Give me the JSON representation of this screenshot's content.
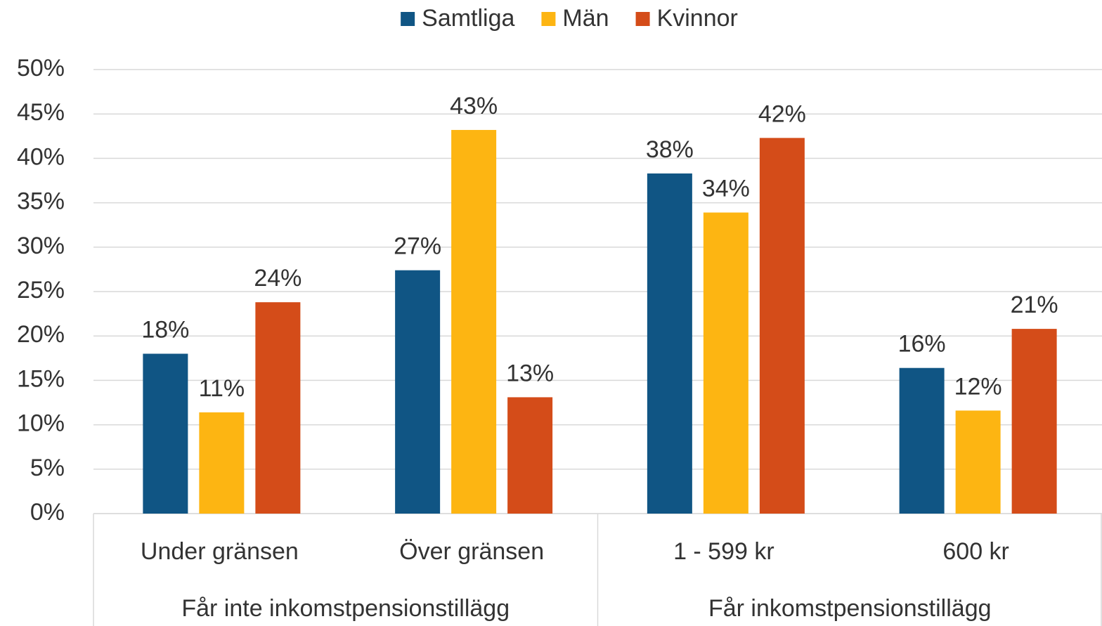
{
  "chart_data": {
    "type": "bar",
    "category_groups": [
      {
        "name": "Får inte inkomstpensionstillägg",
        "categories": [
          "Under gränsen",
          "Över gränsen"
        ]
      },
      {
        "name": "Får inkomstpensionstillägg",
        "categories": [
          "1 - 599 kr",
          "600 kr"
        ]
      }
    ],
    "series": [
      {
        "name": "Samtliga",
        "color": "#105584",
        "values": [
          18.0,
          27.4,
          38.3,
          16.4
        ],
        "value_labels": [
          "18%",
          "27%",
          "38%",
          "16%"
        ]
      },
      {
        "name": "Män",
        "color": "#fdb512",
        "values": [
          11.4,
          43.2,
          33.9,
          11.6
        ],
        "value_labels": [
          "11%",
          "43%",
          "34%",
          "12%"
        ]
      },
      {
        "name": "Kvinnor",
        "color": "#d44c19",
        "values": [
          23.8,
          13.1,
          42.3,
          20.8
        ],
        "value_labels": [
          "24%",
          "13%",
          "42%",
          "21%"
        ]
      }
    ],
    "ylim": [
      0,
      50
    ],
    "yticks": [
      {
        "value": 0,
        "label": "0%"
      },
      {
        "value": 5,
        "label": "5%"
      },
      {
        "value": 10,
        "label": "10%"
      },
      {
        "value": 15,
        "label": "15%"
      },
      {
        "value": 20,
        "label": "20%"
      },
      {
        "value": 25,
        "label": "25%"
      },
      {
        "value": 30,
        "label": "30%"
      },
      {
        "value": 35,
        "label": "35%"
      },
      {
        "value": 40,
        "label": "40%"
      },
      {
        "value": 45,
        "label": "45%"
      },
      {
        "value": 50,
        "label": "50%"
      }
    ],
    "grid": true,
    "legend": "top"
  }
}
